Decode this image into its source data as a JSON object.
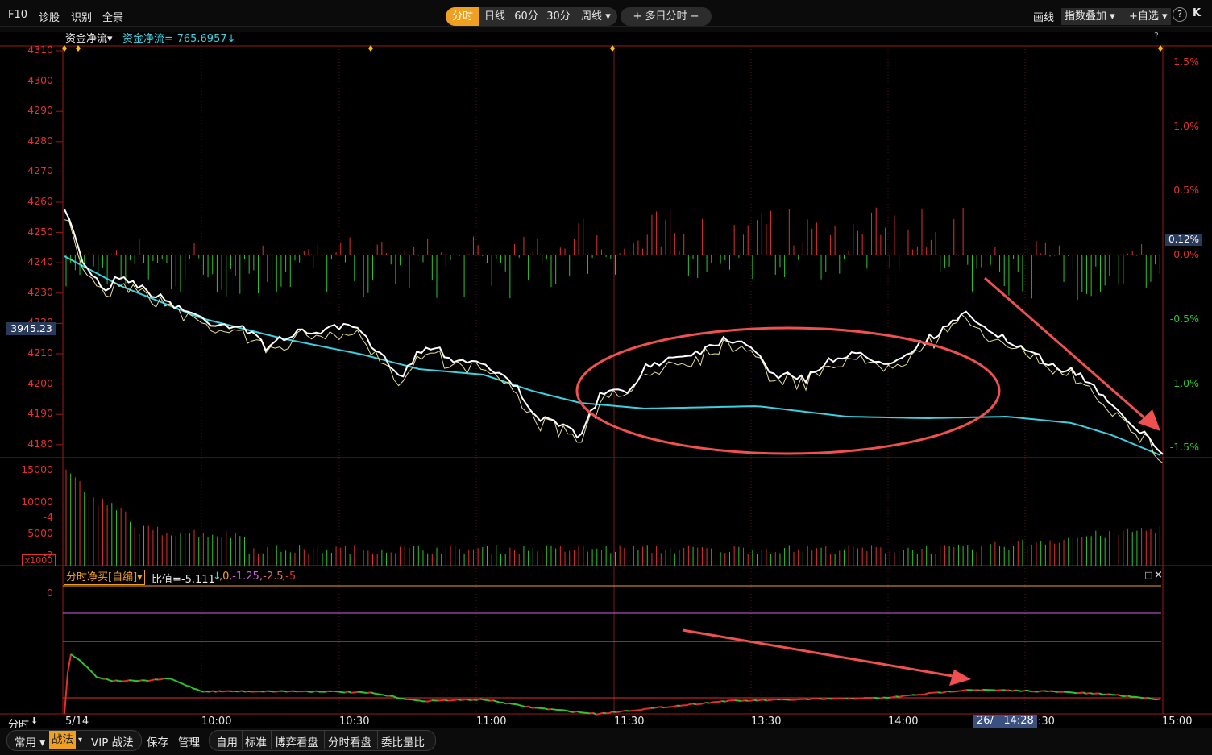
{
  "toolbar": {
    "f10": "F10",
    "diagnose": "诊股",
    "recognize": "识别",
    "fullview": "全景",
    "periods": [
      "分时",
      "日线",
      "60分",
      "30分",
      "周线 ▾"
    ],
    "multiday": "+ 多日分时 −",
    "draw": "画线",
    "index_overlay": "指数叠加 ▾",
    "watchlist": "+自选 ▾",
    "help": "?",
    "collapse": "K"
  },
  "main_chart": {
    "indicator_name": "资金净流▾",
    "indicator_value": "资金净流=-765.6957↓",
    "help": "?",
    "price_ticks": [
      "4310",
      "4300",
      "4290",
      "4280",
      "4270",
      "4260",
      "4250",
      "4240",
      "4230",
      "4220",
      "4210",
      "4200",
      "4190",
      "4180"
    ],
    "current_price_tag": "3945.23",
    "pct_ticks": [
      "1.5%",
      "1.0%",
      "0.5%",
      "0.0%",
      "-0.5%",
      "-1.0%",
      "-1.5%"
    ],
    "current_pct_tag": "0.12%",
    "colors": {
      "up": "#e03030",
      "down": "#2ec52e",
      "avg_line": "#3cd0e0",
      "price_line": "#ffffff",
      "annotation": "#f05050"
    }
  },
  "volume_chart": {
    "ticks": [
      "15000",
      "10000",
      "5000"
    ],
    "unit": "x1000"
  },
  "sub_chart": {
    "indicator_name": "分时净买[自编]▾",
    "ratio_label": "比值=-5.111",
    "ratio_arrow": "↓",
    "levels": [
      ",0",
      ",-1.25",
      ",-2.5",
      ",-5"
    ],
    "ticks": [
      "0",
      "-2",
      "-4"
    ]
  },
  "time_axis": {
    "mode": "分时",
    "labels": [
      "5/14",
      "10:00",
      "10:30",
      "11:00",
      "11:30",
      "13:30",
      "14:00",
      ":30",
      "15:00"
    ],
    "cursor_date": "26/",
    "cursor_time": "14:28"
  },
  "bottom_bar": {
    "common": "常用",
    "tactics": "战法",
    "vip": "VIP 战法",
    "save": "保存",
    "manage": "管理",
    "tabs": [
      "自用",
      "标准",
      "博弈看盘",
      "分时看盘",
      "委比量比"
    ]
  }
}
